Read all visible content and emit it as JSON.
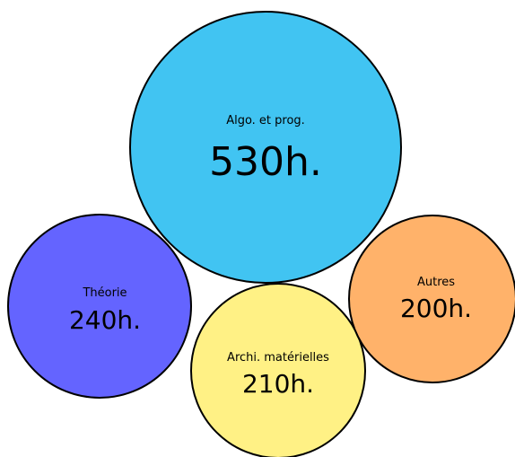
{
  "chart_data": {
    "type": "bubble",
    "title": "",
    "unit": "h.",
    "items": [
      {
        "category": "Algo. et prog.",
        "value": 530,
        "value_label": "530h.",
        "color": "#41c4f2"
      },
      {
        "category": "Théorie",
        "value": 240,
        "value_label": "240h.",
        "color": "#6464ff"
      },
      {
        "category": "Archi. matérielles",
        "value": 210,
        "value_label": "210h.",
        "color": "#fff185"
      },
      {
        "category": "Autres",
        "value": 200,
        "value_label": "200h.",
        "color": "#ffb26a"
      }
    ]
  }
}
